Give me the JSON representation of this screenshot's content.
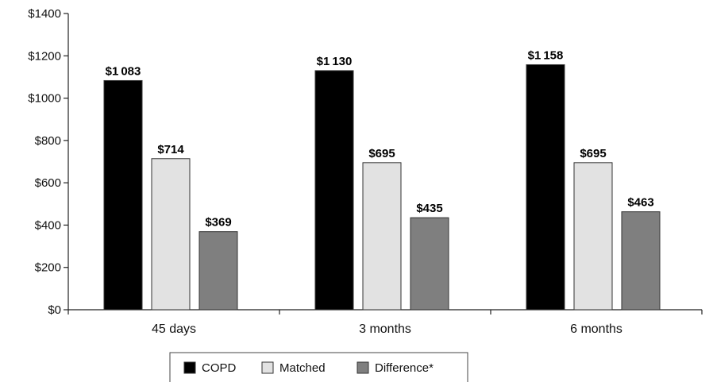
{
  "chart_data": {
    "type": "bar",
    "categories": [
      "45 days",
      "3 months",
      "6 months"
    ],
    "series": [
      {
        "name": "COPD",
        "values": [
          1083,
          1130,
          1158
        ],
        "labels": [
          "$1 083",
          "$1 130",
          "$1 158"
        ],
        "color": "#000000"
      },
      {
        "name": "Matched",
        "values": [
          714,
          695,
          695
        ],
        "labels": [
          "$714",
          "$695",
          "$695"
        ],
        "color": "#e2e2e2"
      },
      {
        "name": "Difference*",
        "values": [
          369,
          435,
          463
        ],
        "labels": [
          "$369",
          "$435",
          "$463"
        ],
        "color": "#7f7f7f"
      }
    ],
    "ylim": [
      0,
      1400
    ],
    "yticks": [
      0,
      200,
      400,
      600,
      800,
      1000,
      1200,
      1400
    ],
    "ytick_labels": [
      "$0",
      "$200",
      "$400",
      "$600",
      "$800",
      "$1000",
      "$1200",
      "$1400"
    ],
    "title": "",
    "xlabel": "",
    "ylabel": "",
    "grid": false,
    "legend_position": "bottom-center"
  }
}
